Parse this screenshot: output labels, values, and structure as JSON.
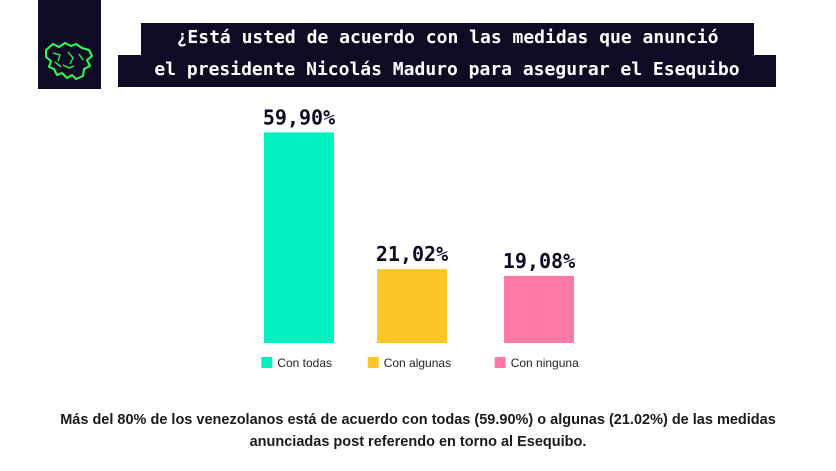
{
  "header": {
    "title_line1": "¿Está usted de acuerdo con las medidas que anunció",
    "title_line2": "el presidente Nicolás Maduro para asegurar el Esequibo",
    "logo_icon": "venezuela-map-icon"
  },
  "chart_data": {
    "type": "bar",
    "categories": [
      "Con todas",
      "Con algunas",
      "Con ninguna"
    ],
    "values": [
      59.9,
      21.02,
      19.08
    ],
    "value_labels": [
      "59,90%",
      "21,02%",
      "19,08%"
    ],
    "colors": [
      "#00f0c0",
      "#fcc62b",
      "#ff7aa8"
    ],
    "ylim": [
      0,
      60
    ],
    "legend_position": "below each bar",
    "grid": false
  },
  "caption": "Más del 80% de los venezolanos está de acuerdo con todas (59.90%) o algunas (21.02%) de las medidas anunciadas post referendo en torno al Esequibo."
}
